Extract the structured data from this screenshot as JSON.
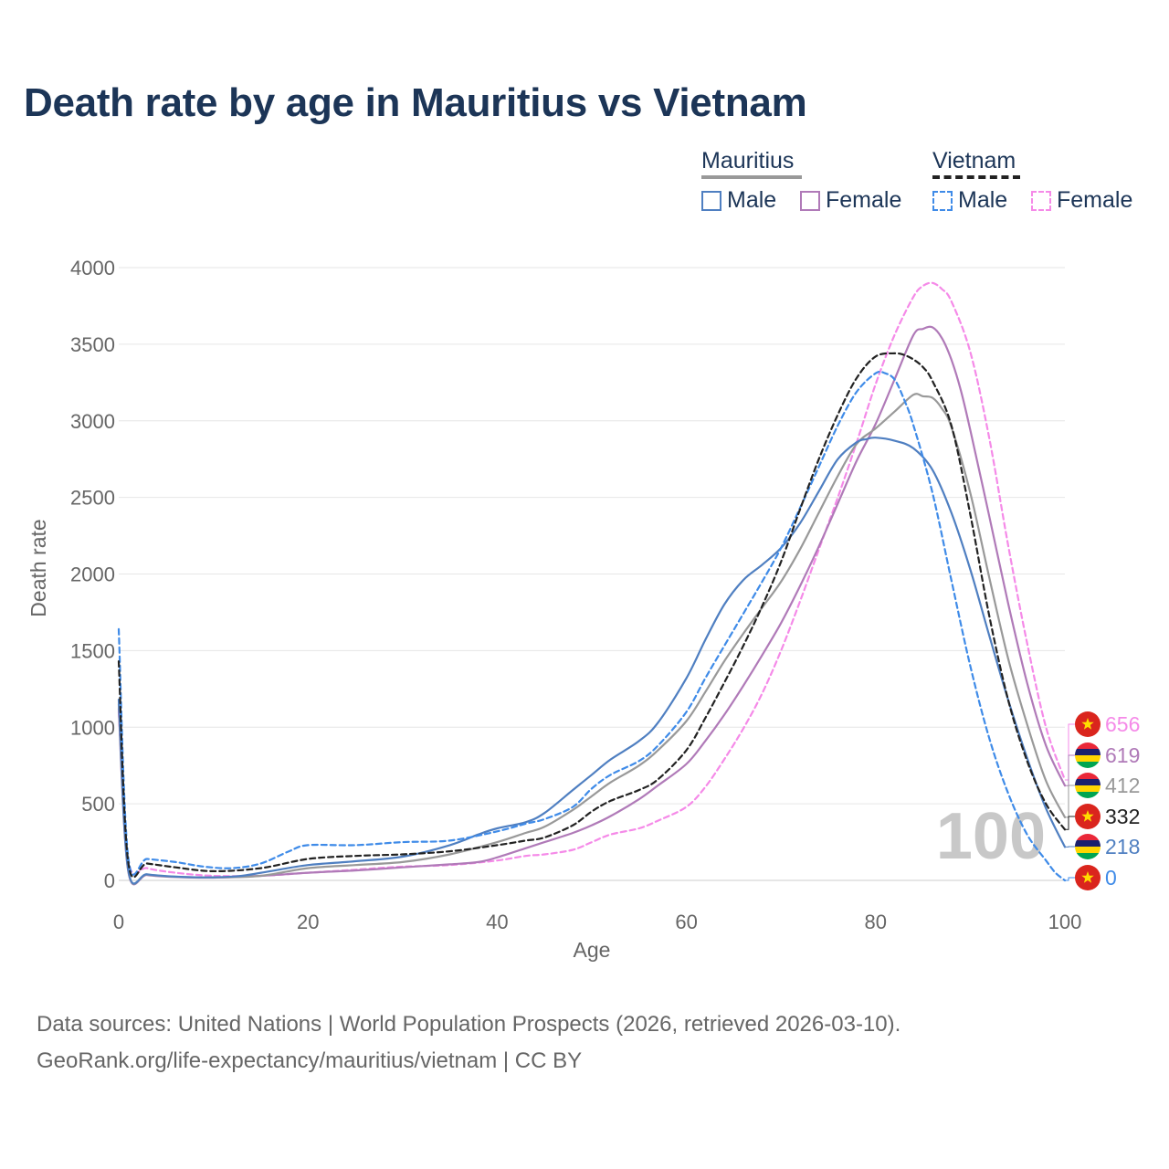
{
  "title": "Death rate by age in Mauritius vs Vietnam",
  "legend": {
    "groups": [
      {
        "name": "Mauritius",
        "male": "Male",
        "female": "Female"
      },
      {
        "name": "Vietnam",
        "male": "Male",
        "female": "Female"
      }
    ]
  },
  "big_label": "100",
  "source_line1": "Data sources: United Nations | World Population Prospects (2026, retrieved 2026-03-10).",
  "source_line2": "GeoRank.org/life-expectancy/mauritius/vietnam | CC BY",
  "colors": {
    "mauritius_male": "#4f7fc1",
    "mauritius_female": "#b07ab8",
    "mauritius_total": "#999999",
    "vietnam_male": "#3f8be8",
    "vietnam_female": "#f58ae8",
    "vietnam_total": "#222222",
    "title": "#1c3557"
  },
  "chart_data": {
    "type": "line",
    "xlabel": "Age",
    "ylabel": "Death rate",
    "xlim": [
      0,
      100
    ],
    "ylim": [
      0,
      4000
    ],
    "xticks": [
      0,
      20,
      40,
      60,
      80,
      100
    ],
    "yticks": [
      0,
      500,
      1000,
      1500,
      2000,
      2500,
      3000,
      3500,
      4000
    ],
    "grid": true,
    "series": [
      {
        "name": "Mauritius Male",
        "key": "mauritius_male",
        "dash": false,
        "x": [
          0,
          1,
          3,
          6,
          10,
          13,
          16,
          20,
          25,
          30,
          35,
          38,
          40,
          43,
          45,
          48,
          50,
          52,
          55,
          57,
          60,
          62,
          64,
          66,
          68,
          70,
          72,
          74,
          76,
          78,
          79,
          80,
          82,
          84,
          86,
          88,
          90,
          92,
          94,
          96,
          98,
          100
        ],
        "y": [
          1180,
          70,
          40,
          25,
          20,
          30,
          60,
          100,
          125,
          155,
          230,
          300,
          340,
          380,
          440,
          590,
          690,
          790,
          910,
          1030,
          1320,
          1570,
          1800,
          1960,
          2060,
          2170,
          2330,
          2540,
          2750,
          2860,
          2880,
          2890,
          2870,
          2820,
          2680,
          2400,
          2030,
          1600,
          1180,
          800,
          470,
          218
        ]
      },
      {
        "name": "Mauritius Female",
        "key": "mauritius_female",
        "dash": false,
        "x": [
          0,
          1,
          3,
          6,
          10,
          15,
          20,
          25,
          30,
          35,
          38,
          40,
          43,
          45,
          48,
          50,
          52,
          55,
          57,
          60,
          62,
          64,
          66,
          68,
          70,
          72,
          74,
          76,
          78,
          80,
          82,
          84,
          85,
          86,
          87,
          88,
          89,
          90,
          92,
          94,
          96,
          98,
          100
        ],
        "y": [
          1120,
          60,
          35,
          22,
          18,
          30,
          50,
          65,
          85,
          105,
          120,
          150,
          210,
          250,
          310,
          360,
          420,
          530,
          620,
          760,
          910,
          1080,
          1270,
          1470,
          1680,
          1920,
          2180,
          2460,
          2740,
          2980,
          3270,
          3560,
          3600,
          3610,
          3540,
          3400,
          3200,
          2940,
          2380,
          1810,
          1290,
          880,
          619
        ]
      },
      {
        "name": "Mauritius Total",
        "key": "mauritius_total",
        "dash": false,
        "x": [
          0,
          1,
          3,
          6,
          10,
          15,
          20,
          25,
          30,
          35,
          40,
          43,
          45,
          48,
          50,
          52,
          55,
          57,
          60,
          62,
          64,
          66,
          68,
          70,
          72,
          74,
          76,
          78,
          80,
          82,
          84,
          85,
          86,
          87,
          88,
          90,
          92,
          94,
          96,
          98,
          100
        ],
        "y": [
          1150,
          65,
          38,
          24,
          19,
          30,
          80,
          100,
          120,
          170,
          250,
          310,
          350,
          460,
          550,
          640,
          750,
          850,
          1040,
          1230,
          1430,
          1610,
          1780,
          1950,
          2160,
          2400,
          2640,
          2850,
          2950,
          3060,
          3170,
          3160,
          3150,
          3080,
          2960,
          2530,
          1980,
          1450,
          1020,
          650,
          412
        ]
      },
      {
        "name": "Vietnam Male",
        "key": "vietnam_male",
        "dash": true,
        "x": [
          0,
          1,
          3,
          6,
          9,
          12,
          15,
          18,
          20,
          25,
          30,
          35,
          40,
          43,
          45,
          48,
          50,
          52,
          55,
          57,
          60,
          62,
          64,
          66,
          68,
          70,
          72,
          74,
          76,
          78,
          80,
          81,
          82,
          83,
          84,
          86,
          88,
          90,
          92,
          94,
          96,
          98,
          99,
          100
        ],
        "y": [
          1640,
          150,
          140,
          120,
          90,
          80,
          110,
          190,
          230,
          230,
          250,
          260,
          320,
          370,
          400,
          480,
          600,
          690,
          780,
          880,
          1100,
          1320,
          1530,
          1740,
          1950,
          2170,
          2430,
          2700,
          2970,
          3190,
          3310,
          3310,
          3270,
          3140,
          2970,
          2530,
          1960,
          1400,
          930,
          570,
          300,
          130,
          50,
          0
        ]
      },
      {
        "name": "Vietnam Female",
        "key": "vietnam_female",
        "dash": true,
        "x": [
          0,
          1,
          3,
          6,
          10,
          15,
          20,
          25,
          30,
          35,
          40,
          43,
          45,
          48,
          50,
          52,
          55,
          57,
          60,
          62,
          64,
          66,
          68,
          70,
          72,
          74,
          76,
          78,
          80,
          82,
          84,
          85,
          86,
          87,
          88,
          90,
          92,
          94,
          96,
          98,
          100
        ],
        "y": [
          1100,
          130,
          80,
          50,
          30,
          30,
          50,
          70,
          90,
          100,
          130,
          160,
          170,
          200,
          250,
          300,
          340,
          390,
          480,
          610,
          790,
          990,
          1220,
          1500,
          1820,
          2160,
          2500,
          2860,
          3240,
          3560,
          3810,
          3880,
          3900,
          3860,
          3780,
          3450,
          2890,
          2190,
          1550,
          1000,
          656
        ]
      },
      {
        "name": "Vietnam Total",
        "key": "vietnam_total",
        "dash": true,
        "x": [
          0,
          1,
          3,
          6,
          10,
          15,
          20,
          25,
          30,
          35,
          40,
          43,
          45,
          48,
          50,
          52,
          55,
          57,
          60,
          62,
          64,
          66,
          68,
          70,
          72,
          74,
          76,
          78,
          80,
          82,
          83,
          84,
          85,
          86,
          88,
          90,
          92,
          94,
          96,
          98,
          100
        ],
        "y": [
          1430,
          120,
          110,
          85,
          60,
          80,
          140,
          160,
          170,
          190,
          230,
          260,
          280,
          360,
          450,
          520,
          590,
          660,
          850,
          1060,
          1290,
          1530,
          1790,
          2080,
          2420,
          2750,
          3040,
          3280,
          3420,
          3440,
          3430,
          3400,
          3350,
          3260,
          2970,
          2390,
          1730,
          1180,
          780,
          500,
          332
        ]
      }
    ],
    "end_labels": [
      {
        "key": "vietnam_female",
        "flag": "vietnam",
        "value": "656"
      },
      {
        "key": "mauritius_female",
        "flag": "mauritius",
        "value": "619"
      },
      {
        "key": "mauritius_total",
        "flag": "mauritius",
        "value": "412"
      },
      {
        "key": "vietnam_total",
        "flag": "vietnam",
        "value": "332"
      },
      {
        "key": "mauritius_male",
        "flag": "mauritius",
        "value": "218"
      },
      {
        "key": "vietnam_male",
        "flag": "vietnam",
        "value": "0"
      }
    ]
  }
}
